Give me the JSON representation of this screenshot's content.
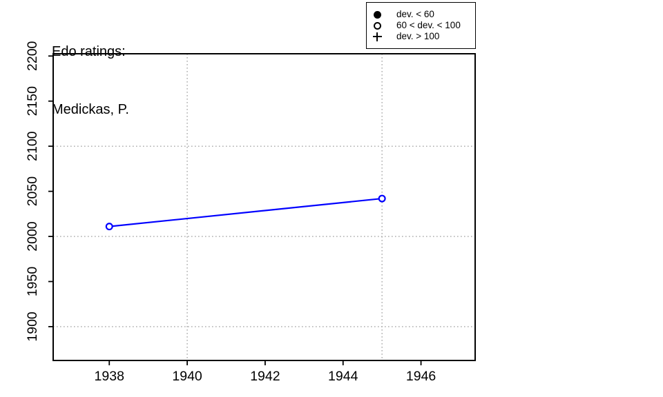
{
  "chart_data": {
    "type": "line",
    "title": "Edo ratings:",
    "subtitle": "Medickas, P.",
    "xlabel": "",
    "ylabel": "",
    "xlim": [
      1936.56,
      1947.39
    ],
    "ylim": [
      1862.5,
      2202.5
    ],
    "x_ticks": [
      1938,
      1940,
      1942,
      1944,
      1946
    ],
    "y_ticks": [
      1900,
      1950,
      2000,
      2050,
      2100,
      2150,
      2200
    ],
    "x_gridlines": [
      1940,
      1945
    ],
    "y_gridlines": [
      1900,
      2000,
      2100
    ],
    "grid_style": "dotted",
    "grid_color": "#a6a6a6",
    "axis_color": "#000000",
    "series": [
      {
        "name": "Edo rating",
        "color": "#0000ff",
        "marker": "open-circle",
        "points": [
          {
            "x": 1938,
            "y": 2011
          },
          {
            "x": 1945,
            "y": 2042
          }
        ]
      }
    ],
    "legend": {
      "position": "top-right",
      "items": [
        {
          "symbol": "filled-circle",
          "label": "dev. < 60"
        },
        {
          "symbol": "open-circle",
          "label": "60 < dev. < 100"
        },
        {
          "symbol": "plus",
          "label": "dev. > 100"
        }
      ]
    }
  }
}
